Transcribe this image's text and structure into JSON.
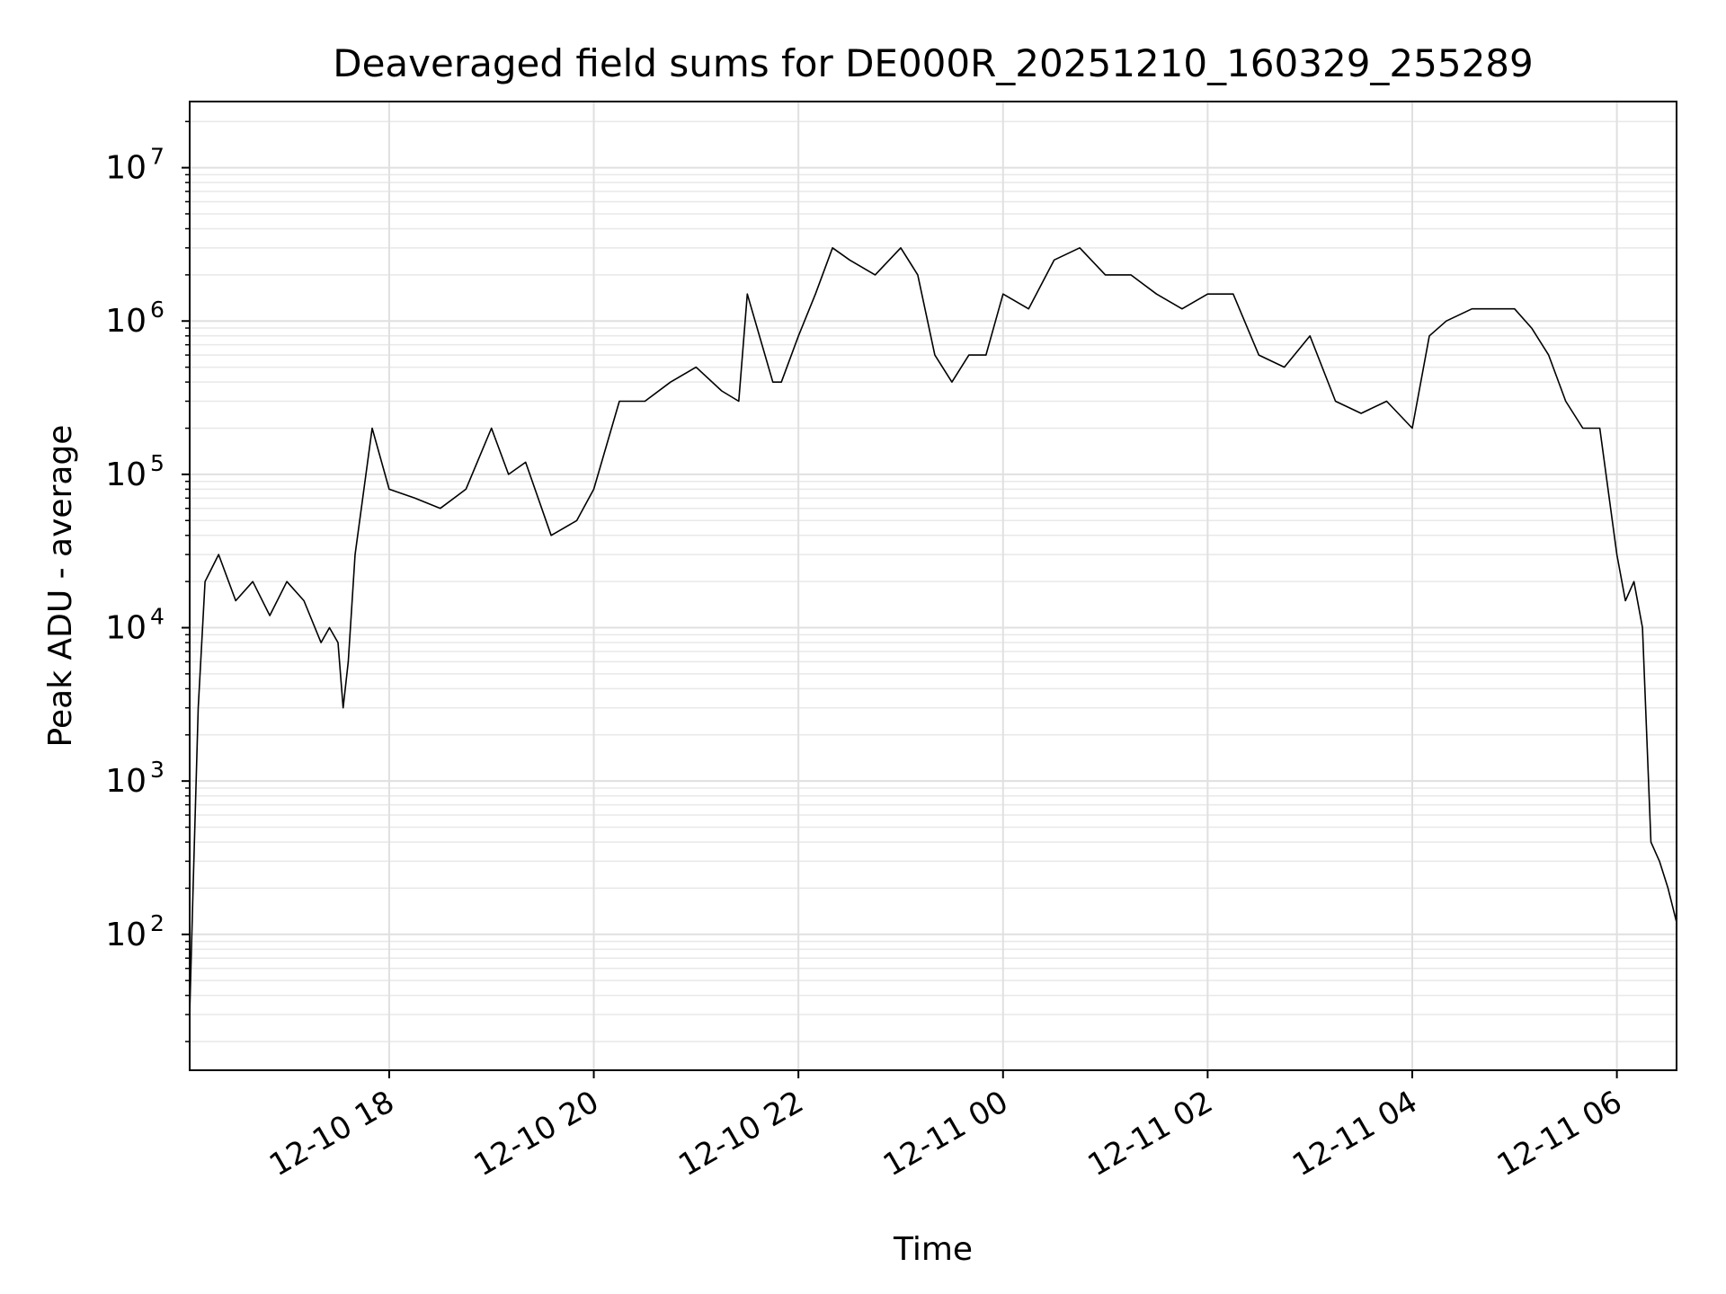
{
  "chart_data": {
    "type": "line",
    "title": "Deaveraged field sums for DE000R_20251210_160329_255289",
    "xlabel": "Time",
    "ylabel": "Peak ADU - average",
    "x_scale": "time",
    "y_scale": "log",
    "xlim": [
      "2025-12-10 16:03",
      "2025-12-11 06:35"
    ],
    "ylim": [
      13,
      27000000
    ],
    "x_ticks": [
      "2025-12-10 18:00",
      "2025-12-10 20:00",
      "2025-12-10 22:00",
      "2025-12-11 00:00",
      "2025-12-11 02:00",
      "2025-12-11 04:00",
      "2025-12-11 06:00"
    ],
    "x_tick_labels": [
      "12-10 18",
      "12-10 20",
      "12-10 22",
      "12-11 00",
      "12-11 02",
      "12-11 04",
      "12-11 06"
    ],
    "y_ticks": [
      100,
      1000,
      10000,
      100000,
      1000000,
      10000000
    ],
    "y_tick_labels": [
      {
        "base": "10",
        "exp": "2"
      },
      {
        "base": "10",
        "exp": "3"
      },
      {
        "base": "10",
        "exp": "4"
      },
      {
        "base": "10",
        "exp": "5"
      },
      {
        "base": "10",
        "exp": "6"
      },
      {
        "base": "10",
        "exp": "7"
      }
    ],
    "grid": true,
    "legend": "none",
    "line_color": "#000000",
    "series": [
      {
        "x": [
          "2025-12-10 16:03",
          "2025-12-10 16:05",
          "2025-12-10 16:08",
          "2025-12-10 16:12",
          "2025-12-10 16:20",
          "2025-12-10 16:30",
          "2025-12-10 16:40",
          "2025-12-10 16:50",
          "2025-12-10 17:00",
          "2025-12-10 17:10",
          "2025-12-10 17:20",
          "2025-12-10 17:25",
          "2025-12-10 17:30",
          "2025-12-10 17:33",
          "2025-12-10 17:36",
          "2025-12-10 17:40",
          "2025-12-10 17:50",
          "2025-12-10 18:00",
          "2025-12-10 18:15",
          "2025-12-10 18:30",
          "2025-12-10 18:45",
          "2025-12-10 19:00",
          "2025-12-10 19:10",
          "2025-12-10 19:20",
          "2025-12-10 19:35",
          "2025-12-10 19:50",
          "2025-12-10 20:00",
          "2025-12-10 20:15",
          "2025-12-10 20:30",
          "2025-12-10 20:45",
          "2025-12-10 21:00",
          "2025-12-10 21:15",
          "2025-12-10 21:25",
          "2025-12-10 21:30",
          "2025-12-10 21:45",
          "2025-12-10 21:50",
          "2025-12-10 22:00",
          "2025-12-10 22:10",
          "2025-12-10 22:20",
          "2025-12-10 22:30",
          "2025-12-10 22:45",
          "2025-12-10 23:00",
          "2025-12-10 23:10",
          "2025-12-10 23:20",
          "2025-12-10 23:30",
          "2025-12-10 23:40",
          "2025-12-10 23:50",
          "2025-12-11 00:00",
          "2025-12-11 00:15",
          "2025-12-11 00:30",
          "2025-12-11 00:45",
          "2025-12-11 01:00",
          "2025-12-11 01:15",
          "2025-12-11 01:30",
          "2025-12-11 01:45",
          "2025-12-11 02:00",
          "2025-12-11 02:15",
          "2025-12-11 02:30",
          "2025-12-11 02:45",
          "2025-12-11 03:00",
          "2025-12-11 03:15",
          "2025-12-11 03:30",
          "2025-12-11 03:45",
          "2025-12-11 04:00",
          "2025-12-11 04:10",
          "2025-12-11 04:20",
          "2025-12-11 04:35",
          "2025-12-11 04:50",
          "2025-12-11 05:00",
          "2025-12-11 05:10",
          "2025-12-11 05:20",
          "2025-12-11 05:30",
          "2025-12-11 05:40",
          "2025-12-11 05:50",
          "2025-12-11 06:00",
          "2025-12-11 06:05",
          "2025-12-11 06:10",
          "2025-12-11 06:15",
          "2025-12-11 06:20",
          "2025-12-11 06:25",
          "2025-12-11 06:30",
          "2025-12-11 06:35"
        ],
        "y": [
          30,
          200,
          3000,
          20000,
          30000,
          15000,
          20000,
          12000,
          20000,
          15000,
          8000,
          10000,
          8000,
          3000,
          6000,
          30000,
          200000,
          80000,
          70000,
          60000,
          80000,
          200000,
          100000,
          120000,
          40000,
          50000,
          80000,
          300000,
          300000,
          400000,
          500000,
          350000,
          300000,
          1500000,
          400000,
          400000,
          800000,
          1500000,
          3000000,
          2500000,
          2000000,
          3000000,
          2000000,
          600000,
          400000,
          600000,
          600000,
          1500000,
          1200000,
          2500000,
          3000000,
          2000000,
          2000000,
          1500000,
          1200000,
          1500000,
          1500000,
          600000,
          500000,
          800000,
          300000,
          250000,
          300000,
          200000,
          800000,
          1000000,
          1200000,
          1200000,
          1200000,
          900000,
          600000,
          300000,
          200000,
          200000,
          30000,
          15000,
          20000,
          10000,
          400,
          300,
          200,
          120
        ]
      }
    ]
  }
}
